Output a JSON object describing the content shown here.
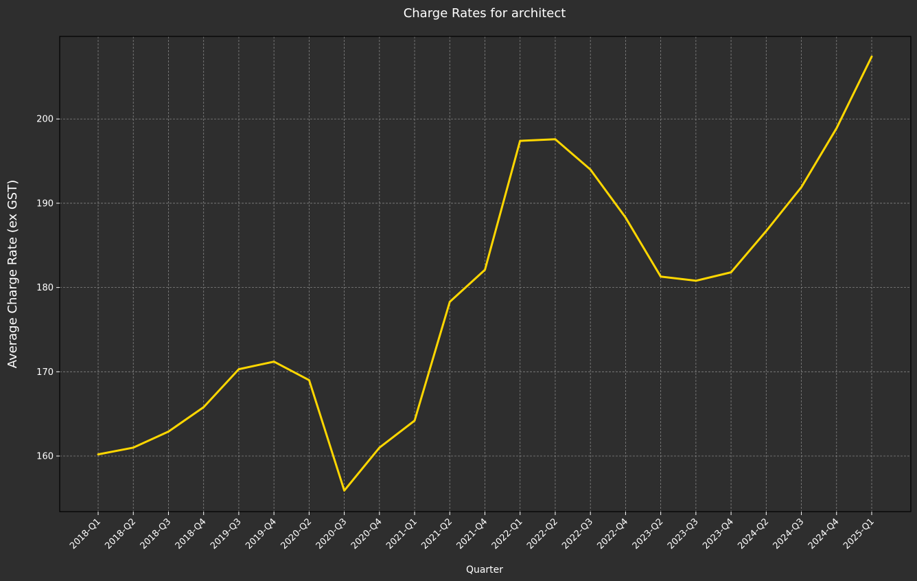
{
  "chart_data": {
    "type": "line",
    "title": "Charge Rates for architect",
    "xlabel": "Quarter",
    "ylabel": "Average Charge Rate (ex GST)",
    "categories": [
      "2018-Q1",
      "2018-Q2",
      "2018-Q3",
      "2018-Q4",
      "2019-Q3",
      "2019-Q4",
      "2020-Q2",
      "2020-Q3",
      "2020-Q4",
      "2021-Q1",
      "2021-Q2",
      "2021-Q4",
      "2022-Q1",
      "2022-Q2",
      "2022-Q3",
      "2022-Q4",
      "2023-Q2",
      "2023-Q3",
      "2023-Q4",
      "2024-Q2",
      "2024-Q3",
      "2024-Q4",
      "2025-Q1"
    ],
    "series": [
      {
        "values": [
          160.2,
          161.0,
          162.9,
          165.8,
          170.3,
          171.2,
          169.0,
          155.9,
          161.0,
          164.2,
          178.3,
          182.1,
          197.4,
          197.6,
          194.0,
          188.3,
          181.3,
          180.8,
          181.8,
          186.7,
          191.9,
          198.9,
          207.4
        ],
        "color": "#ffd700"
      }
    ],
    "ylim": [
      153.4,
      209.8
    ],
    "yticks": [
      160,
      170,
      180,
      190,
      200
    ],
    "grid": true,
    "background": "#2e2e2e"
  }
}
